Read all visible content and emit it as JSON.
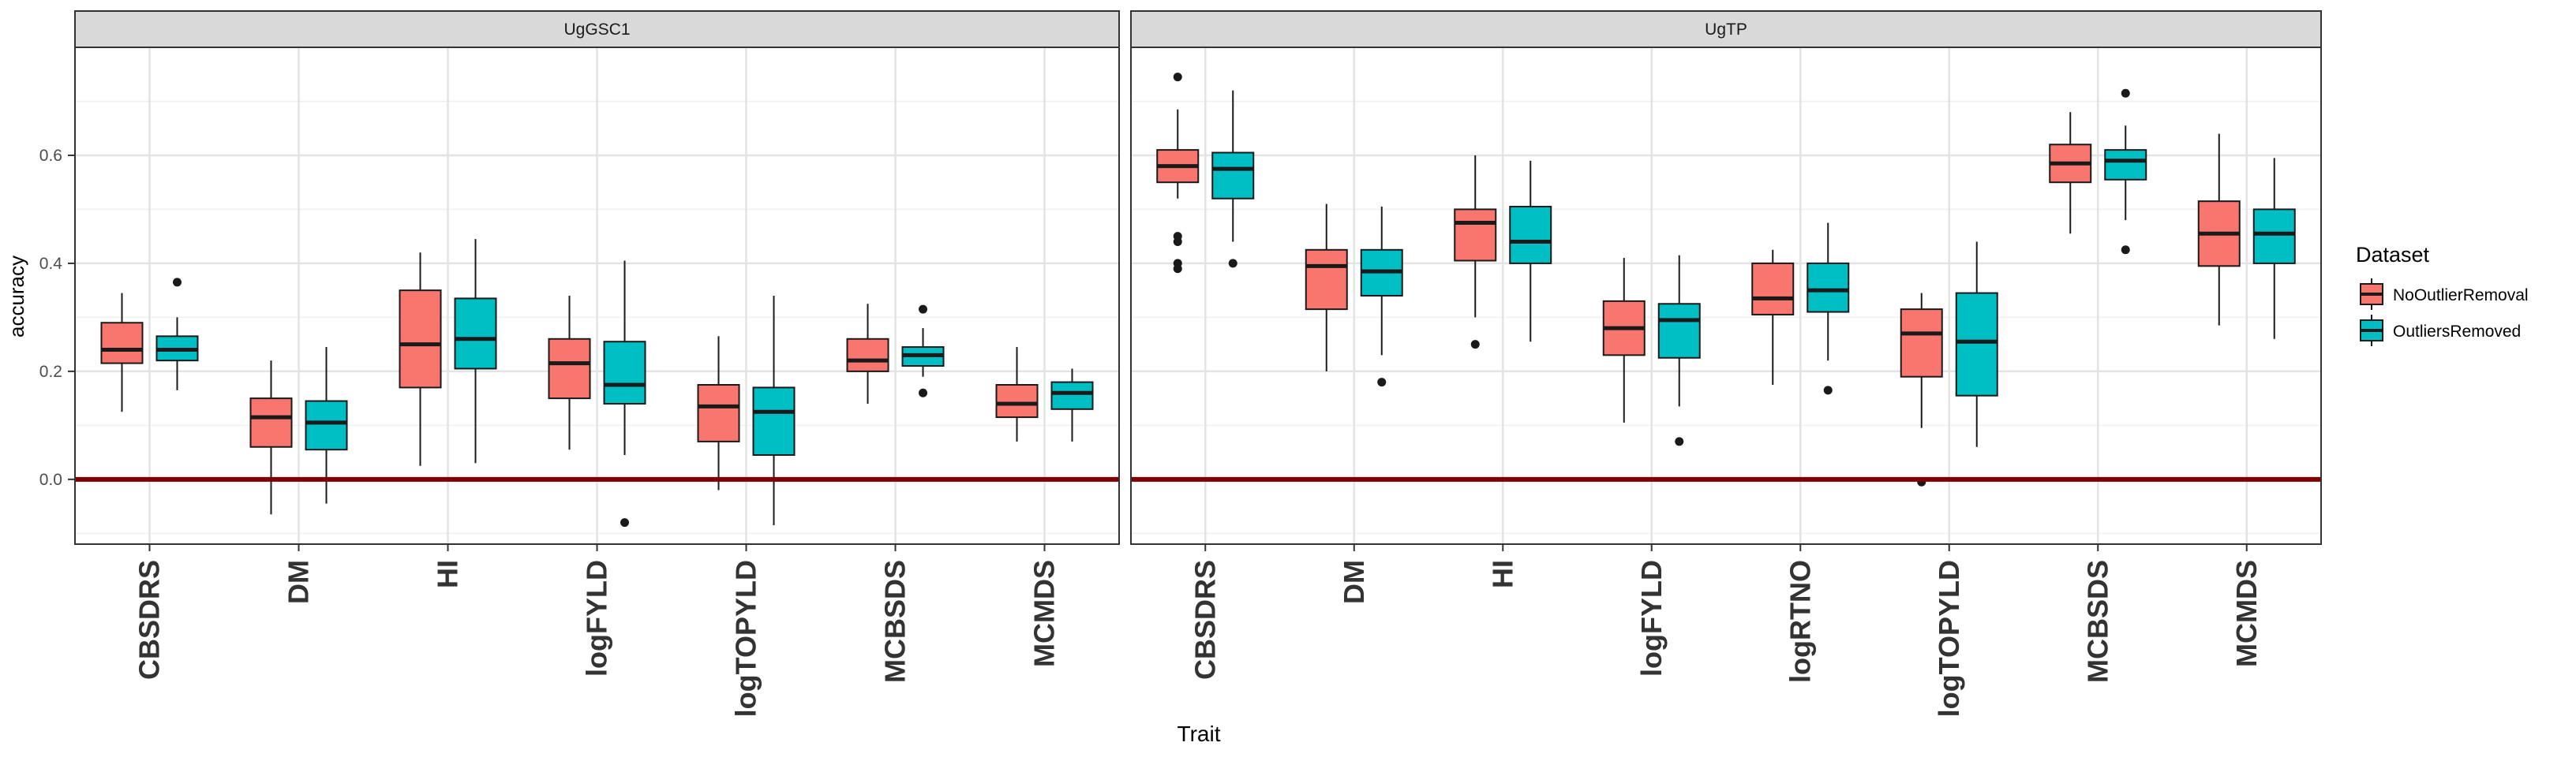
{
  "chart_data": {
    "type": "boxplot",
    "xlabel": "Trait",
    "ylabel": "accuracy",
    "ylim": [
      -0.12,
      0.8
    ],
    "yticks": [
      0.0,
      0.2,
      0.4,
      0.6
    ],
    "ytick_labels": [
      "0.0",
      "0.2",
      "0.4",
      "0.6"
    ],
    "grid": true,
    "reference_line": {
      "y": 0.0,
      "color": "#7f0000"
    },
    "legend": {
      "title": "Dataset",
      "placement": "right",
      "entries": [
        {
          "name": "NoOutlierRemoval",
          "color": "#f8766d"
        },
        {
          "name": "OutliersRemoved",
          "color": "#00bfc4"
        }
      ]
    },
    "panels": [
      {
        "title": "UgGSC1",
        "categories": [
          "CBSDRS",
          "DM",
          "HI",
          "logFYLD",
          "logTOPYLD",
          "MCBSDS",
          "MCMDS"
        ],
        "series": [
          {
            "name": "NoOutlierRemoval",
            "boxes": [
              {
                "min": 0.125,
                "q1": 0.215,
                "median": 0.24,
                "q3": 0.29,
                "max": 0.345,
                "outliers": []
              },
              {
                "min": -0.065,
                "q1": 0.06,
                "median": 0.115,
                "q3": 0.15,
                "max": 0.22,
                "outliers": []
              },
              {
                "min": 0.025,
                "q1": 0.17,
                "median": 0.25,
                "q3": 0.35,
                "max": 0.42,
                "outliers": []
              },
              {
                "min": 0.055,
                "q1": 0.15,
                "median": 0.215,
                "q3": 0.26,
                "max": 0.34,
                "outliers": []
              },
              {
                "min": -0.02,
                "q1": 0.07,
                "median": 0.135,
                "q3": 0.175,
                "max": 0.265,
                "outliers": []
              },
              {
                "min": 0.14,
                "q1": 0.2,
                "median": 0.22,
                "q3": 0.26,
                "max": 0.325,
                "outliers": []
              },
              {
                "min": 0.07,
                "q1": 0.115,
                "median": 0.14,
                "q3": 0.175,
                "max": 0.245,
                "outliers": []
              }
            ]
          },
          {
            "name": "OutliersRemoved",
            "boxes": [
              {
                "min": 0.165,
                "q1": 0.22,
                "median": 0.24,
                "q3": 0.265,
                "max": 0.3,
                "outliers": [
                  0.365
                ]
              },
              {
                "min": -0.045,
                "q1": 0.055,
                "median": 0.105,
                "q3": 0.145,
                "max": 0.245,
                "outliers": []
              },
              {
                "min": 0.03,
                "q1": 0.205,
                "median": 0.26,
                "q3": 0.335,
                "max": 0.445,
                "outliers": []
              },
              {
                "min": 0.045,
                "q1": 0.14,
                "median": 0.175,
                "q3": 0.255,
                "max": 0.405,
                "outliers": [
                  -0.08
                ]
              },
              {
                "min": -0.085,
                "q1": 0.045,
                "median": 0.125,
                "q3": 0.17,
                "max": 0.34,
                "outliers": []
              },
              {
                "min": 0.19,
                "q1": 0.21,
                "median": 0.23,
                "q3": 0.245,
                "max": 0.28,
                "outliers": [
                  0.315,
                  0.16
                ]
              },
              {
                "min": 0.07,
                "q1": 0.13,
                "median": 0.16,
                "q3": 0.18,
                "max": 0.205,
                "outliers": []
              }
            ]
          }
        ]
      },
      {
        "title": "UgTP",
        "categories": [
          "CBSDRS",
          "DM",
          "HI",
          "logFYLD",
          "logRTNO",
          "logTOPYLD",
          "MCBSDS",
          "MCMDS"
        ],
        "series": [
          {
            "name": "NoOutlierRemoval",
            "boxes": [
              {
                "min": 0.52,
                "q1": 0.55,
                "median": 0.58,
                "q3": 0.61,
                "max": 0.685,
                "outliers": [
                  0.745,
                  0.45,
                  0.44,
                  0.4,
                  0.39
                ]
              },
              {
                "min": 0.2,
                "q1": 0.315,
                "median": 0.395,
                "q3": 0.425,
                "max": 0.51,
                "outliers": []
              },
              {
                "min": 0.3,
                "q1": 0.405,
                "median": 0.475,
                "q3": 0.5,
                "max": 0.6,
                "outliers": [
                  0.25
                ]
              },
              {
                "min": 0.105,
                "q1": 0.23,
                "median": 0.28,
                "q3": 0.33,
                "max": 0.41,
                "outliers": []
              },
              {
                "min": 0.175,
                "q1": 0.305,
                "median": 0.335,
                "q3": 0.4,
                "max": 0.425,
                "outliers": []
              },
              {
                "min": 0.095,
                "q1": 0.19,
                "median": 0.27,
                "q3": 0.315,
                "max": 0.345,
                "outliers": [
                  -0.005
                ]
              },
              {
                "min": 0.455,
                "q1": 0.55,
                "median": 0.585,
                "q3": 0.62,
                "max": 0.68,
                "outliers": []
              },
              {
                "min": 0.285,
                "q1": 0.395,
                "median": 0.455,
                "q3": 0.515,
                "max": 0.64,
                "outliers": []
              }
            ]
          },
          {
            "name": "OutliersRemoved",
            "boxes": [
              {
                "min": 0.44,
                "q1": 0.52,
                "median": 0.575,
                "q3": 0.605,
                "max": 0.72,
                "outliers": [
                  0.4
                ]
              },
              {
                "min": 0.23,
                "q1": 0.34,
                "median": 0.385,
                "q3": 0.425,
                "max": 0.505,
                "outliers": [
                  0.18
                ]
              },
              {
                "min": 0.255,
                "q1": 0.4,
                "median": 0.44,
                "q3": 0.505,
                "max": 0.59,
                "outliers": []
              },
              {
                "min": 0.135,
                "q1": 0.225,
                "median": 0.295,
                "q3": 0.325,
                "max": 0.415,
                "outliers": [
                  0.07
                ]
              },
              {
                "min": 0.22,
                "q1": 0.31,
                "median": 0.35,
                "q3": 0.4,
                "max": 0.475,
                "outliers": [
                  0.165
                ]
              },
              {
                "min": 0.06,
                "q1": 0.155,
                "median": 0.255,
                "q3": 0.345,
                "max": 0.44,
                "outliers": []
              },
              {
                "min": 0.48,
                "q1": 0.555,
                "median": 0.59,
                "q3": 0.61,
                "max": 0.655,
                "outliers": [
                  0.715,
                  0.425
                ]
              },
              {
                "min": 0.26,
                "q1": 0.4,
                "median": 0.455,
                "q3": 0.5,
                "max": 0.595,
                "outliers": []
              }
            ]
          }
        ]
      }
    ]
  }
}
